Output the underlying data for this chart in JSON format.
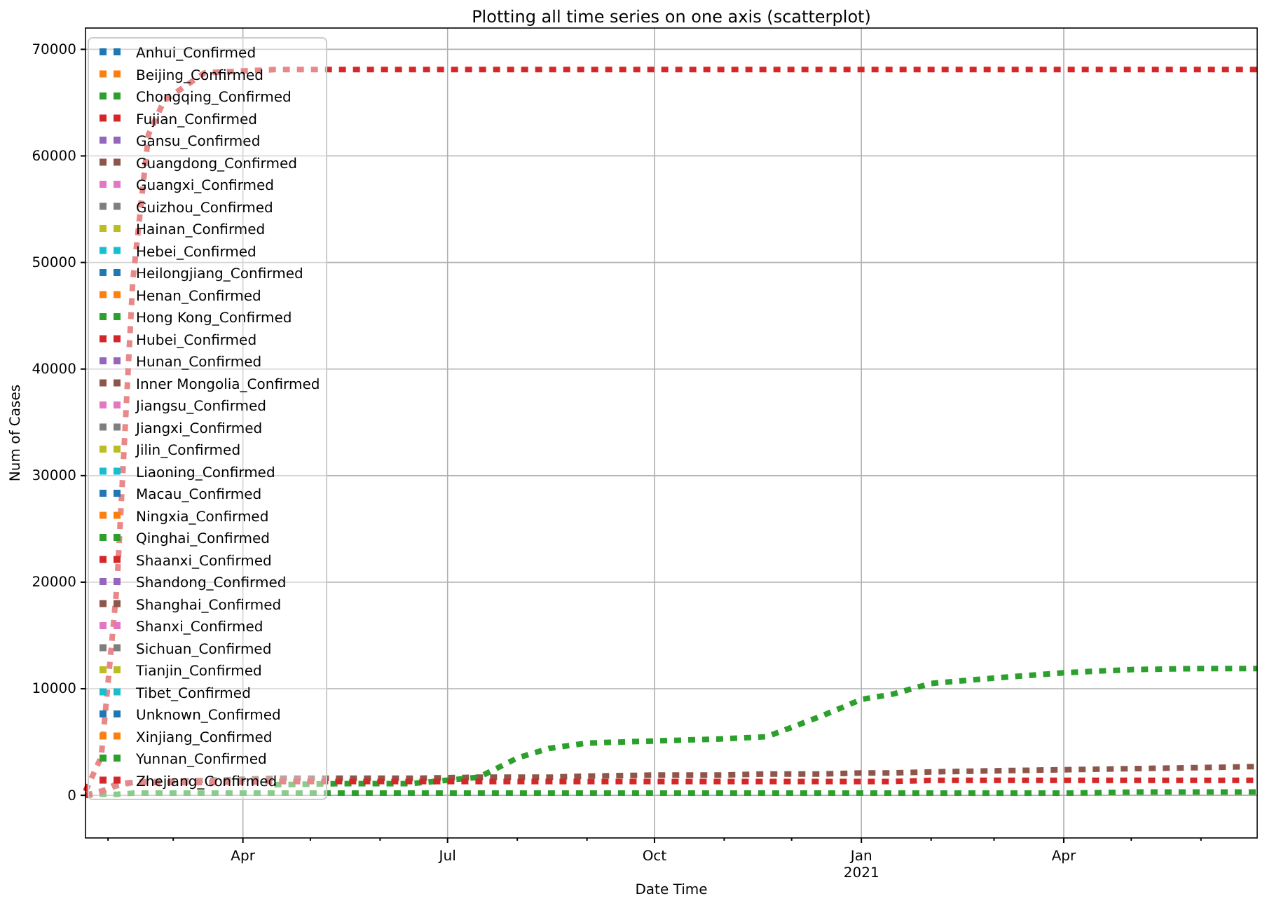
{
  "chart_data": {
    "type": "line",
    "title": "Plotting all time series on one axis (scatterplot)",
    "xlabel": "Date Time",
    "ylabel": "Num of Cases",
    "x": [
      "2020-01-22",
      "2020-01-29",
      "2020-02-05",
      "2020-02-12",
      "2020-02-19",
      "2020-02-26",
      "2020-03-15",
      "2020-04-15",
      "2020-05-15",
      "2020-06-15",
      "2020-07-15",
      "2020-08-01",
      "2020-08-15",
      "2020-09-01",
      "2020-10-01",
      "2020-11-01",
      "2020-11-20",
      "2020-12-15",
      "2021-01-01",
      "2021-01-15",
      "2021-02-01",
      "2021-03-01",
      "2021-04-01",
      "2021-05-01",
      "2021-06-01",
      "2021-06-26"
    ],
    "xlim": [
      "2020-01-22",
      "2021-06-26"
    ],
    "xticks": [
      {
        "value": "2020-02-01",
        "label": null
      },
      {
        "value": "2020-03-01",
        "label": null
      },
      {
        "value": "2020-04-01",
        "label": "Apr"
      },
      {
        "value": "2020-05-01",
        "label": null
      },
      {
        "value": "2020-06-01",
        "label": null
      },
      {
        "value": "2020-07-01",
        "label": "Jul"
      },
      {
        "value": "2020-08-01",
        "label": null
      },
      {
        "value": "2020-09-01",
        "label": null
      },
      {
        "value": "2020-10-01",
        "label": "Oct"
      },
      {
        "value": "2020-11-01",
        "label": null
      },
      {
        "value": "2020-12-01",
        "label": null
      },
      {
        "value": "2021-01-01",
        "label": "Jan\n2021"
      },
      {
        "value": "2021-02-01",
        "label": null
      },
      {
        "value": "2021-03-01",
        "label": null
      },
      {
        "value": "2021-04-01",
        "label": "Apr"
      },
      {
        "value": "2021-05-01",
        "label": null
      },
      {
        "value": "2021-06-01",
        "label": null
      }
    ],
    "ylim": [
      -4000,
      72000
    ],
    "yticks": [
      0,
      10000,
      20000,
      30000,
      40000,
      50000,
      60000,
      70000
    ],
    "grid": true,
    "legend": "top left",
    "line_style": "dotted",
    "series": [
      {
        "name": "Anhui_Confirmed",
        "color": "#1f77b4",
        "values": [
          null,
          null,
          null,
          null,
          null,
          null,
          null,
          null,
          null,
          null,
          null,
          null,
          null,
          null,
          null,
          null,
          null,
          null,
          null,
          null,
          null,
          null,
          null,
          null,
          null,
          null
        ]
      },
      {
        "name": "Beijing_Confirmed",
        "color": "#ff7f0e",
        "values": [
          null,
          null,
          null,
          null,
          null,
          null,
          null,
          null,
          null,
          null,
          null,
          null,
          null,
          null,
          null,
          null,
          null,
          null,
          null,
          null,
          null,
          null,
          null,
          null,
          null,
          null
        ]
      },
      {
        "name": "Chongqing_Confirmed",
        "color": "#2ca02c",
        "values": [
          null,
          null,
          null,
          null,
          null,
          null,
          null,
          null,
          null,
          null,
          null,
          null,
          null,
          null,
          null,
          null,
          null,
          null,
          null,
          null,
          null,
          null,
          null,
          null,
          null,
          null
        ]
      },
      {
        "name": "Fujian_Confirmed",
        "color": "#d62728",
        "values": [
          null,
          null,
          null,
          null,
          null,
          null,
          null,
          null,
          null,
          null,
          null,
          null,
          null,
          null,
          null,
          null,
          null,
          null,
          null,
          null,
          null,
          null,
          null,
          null,
          null,
          null
        ]
      },
      {
        "name": "Gansu_Confirmed",
        "color": "#9467bd",
        "values": [
          null,
          null,
          null,
          null,
          null,
          null,
          null,
          null,
          null,
          null,
          null,
          null,
          null,
          null,
          null,
          null,
          null,
          null,
          null,
          null,
          null,
          null,
          null,
          null,
          null,
          null
        ]
      },
      {
        "name": "Guangdong_Confirmed",
        "color": "#8c564b",
        "values": [
          0,
          400,
          900,
          1200,
          1300,
          1300,
          1400,
          1600,
          1600,
          1600,
          1700,
          1700,
          1700,
          1800,
          1900,
          1900,
          2000,
          2000,
          2100,
          2100,
          2200,
          2300,
          2400,
          2500,
          2600,
          2700
        ]
      },
      {
        "name": "Guangxi_Confirmed",
        "color": "#e377c2",
        "values": [
          null,
          null,
          null,
          null,
          null,
          null,
          null,
          null,
          null,
          null,
          null,
          null,
          null,
          null,
          null,
          null,
          null,
          null,
          null,
          null,
          null,
          null,
          null,
          null,
          null,
          null
        ]
      },
      {
        "name": "Guizhou_Confirmed",
        "color": "#7f7f7f",
        "values": [
          null,
          null,
          null,
          null,
          null,
          null,
          null,
          null,
          null,
          null,
          null,
          null,
          null,
          null,
          null,
          null,
          null,
          null,
          null,
          null,
          null,
          null,
          null,
          null,
          null,
          null
        ]
      },
      {
        "name": "Hainan_Confirmed",
        "color": "#bcbd22",
        "values": [
          null,
          null,
          null,
          null,
          null,
          null,
          null,
          null,
          null,
          null,
          null,
          null,
          null,
          null,
          null,
          null,
          null,
          null,
          null,
          null,
          null,
          null,
          null,
          null,
          null,
          null
        ]
      },
      {
        "name": "Hebei_Confirmed",
        "color": "#17becf",
        "values": [
          null,
          null,
          null,
          null,
          null,
          null,
          null,
          null,
          null,
          null,
          null,
          null,
          null,
          null,
          null,
          null,
          null,
          null,
          null,
          null,
          null,
          null,
          null,
          null,
          null,
          null
        ]
      },
      {
        "name": "Heilongjiang_Confirmed",
        "color": "#1f77b4",
        "values": [
          null,
          null,
          null,
          null,
          null,
          null,
          null,
          null,
          null,
          null,
          null,
          null,
          null,
          null,
          null,
          null,
          null,
          null,
          null,
          null,
          null,
          null,
          null,
          null,
          null,
          null
        ]
      },
      {
        "name": "Henan_Confirmed",
        "color": "#ff7f0e",
        "values": [
          null,
          null,
          null,
          null,
          null,
          null,
          null,
          null,
          null,
          null,
          null,
          null,
          null,
          null,
          null,
          null,
          null,
          null,
          null,
          null,
          null,
          null,
          null,
          null,
          null,
          null
        ]
      },
      {
        "name": "Hong Kong_Confirmed",
        "color": "#2ca02c",
        "values": [
          null,
          null,
          null,
          null,
          null,
          null,
          null,
          1000,
          1100,
          1100,
          1700,
          3500,
          4400,
          4900,
          5100,
          5300,
          5500,
          7500,
          9000,
          9500,
          10500,
          11000,
          11500,
          11800,
          11900,
          11900
        ]
      },
      {
        "name": "Hubei_Confirmed",
        "color": "#d62728",
        "values": [
          400,
          3600,
          19700,
          48200,
          62000,
          65200,
          67800,
          68100,
          68100,
          68100,
          68100,
          68100,
          68100,
          68100,
          68100,
          68100,
          68100,
          68100,
          68100,
          68100,
          68100,
          68100,
          68100,
          68100,
          68100,
          68100
        ]
      },
      {
        "name": "Hunan_Confirmed",
        "color": "#9467bd",
        "values": [
          null,
          null,
          null,
          null,
          null,
          null,
          null,
          null,
          null,
          null,
          null,
          null,
          null,
          null,
          null,
          null,
          null,
          null,
          null,
          null,
          null,
          null,
          null,
          null,
          null,
          null
        ]
      },
      {
        "name": "Inner Mongolia_Confirmed",
        "color": "#8c564b",
        "values": [
          null,
          null,
          null,
          null,
          null,
          null,
          null,
          null,
          null,
          null,
          null,
          null,
          null,
          null,
          null,
          null,
          null,
          null,
          null,
          null,
          null,
          null,
          null,
          null,
          null,
          null
        ]
      },
      {
        "name": "Jiangsu_Confirmed",
        "color": "#e377c2",
        "values": [
          null,
          null,
          null,
          null,
          null,
          null,
          null,
          null,
          null,
          null,
          null,
          null,
          null,
          null,
          null,
          null,
          null,
          null,
          null,
          null,
          null,
          null,
          null,
          null,
          null,
          null
        ]
      },
      {
        "name": "Jiangxi_Confirmed",
        "color": "#7f7f7f",
        "values": [
          null,
          null,
          null,
          null,
          null,
          null,
          null,
          null,
          null,
          null,
          null,
          null,
          null,
          null,
          null,
          null,
          null,
          null,
          null,
          null,
          null,
          null,
          null,
          null,
          null,
          null
        ]
      },
      {
        "name": "Jilin_Confirmed",
        "color": "#bcbd22",
        "values": [
          null,
          null,
          null,
          null,
          null,
          null,
          null,
          null,
          null,
          null,
          null,
          null,
          null,
          null,
          null,
          null,
          null,
          null,
          null,
          null,
          null,
          null,
          null,
          null,
          null,
          null
        ]
      },
      {
        "name": "Liaoning_Confirmed",
        "color": "#17becf",
        "values": [
          null,
          null,
          null,
          null,
          null,
          null,
          null,
          null,
          null,
          null,
          null,
          null,
          null,
          null,
          null,
          null,
          null,
          null,
          null,
          null,
          null,
          null,
          null,
          null,
          null,
          null
        ]
      },
      {
        "name": "Macau_Confirmed",
        "color": "#1f77b4",
        "values": [
          null,
          null,
          null,
          null,
          null,
          null,
          null,
          null,
          null,
          null,
          null,
          null,
          null,
          null,
          null,
          null,
          null,
          null,
          null,
          null,
          null,
          null,
          null,
          null,
          null,
          null
        ]
      },
      {
        "name": "Ningxia_Confirmed",
        "color": "#ff7f0e",
        "values": [
          null,
          null,
          null,
          null,
          null,
          null,
          null,
          null,
          null,
          null,
          null,
          null,
          null,
          null,
          null,
          null,
          null,
          null,
          null,
          null,
          null,
          null,
          null,
          null,
          null,
          null
        ]
      },
      {
        "name": "Qinghai_Confirmed",
        "color": "#2ca02c",
        "values": [
          null,
          null,
          null,
          null,
          null,
          null,
          null,
          null,
          null,
          null,
          null,
          null,
          null,
          null,
          null,
          null,
          null,
          null,
          null,
          null,
          null,
          null,
          null,
          null,
          null,
          null
        ]
      },
      {
        "name": "Shaanxi_Confirmed",
        "color": "#d62728",
        "values": [
          null,
          null,
          null,
          null,
          null,
          null,
          null,
          null,
          null,
          null,
          null,
          null,
          null,
          null,
          null,
          null,
          null,
          null,
          null,
          null,
          null,
          null,
          null,
          null,
          null,
          null
        ]
      },
      {
        "name": "Shandong_Confirmed",
        "color": "#9467bd",
        "values": [
          null,
          null,
          null,
          null,
          null,
          null,
          null,
          null,
          null,
          null,
          null,
          null,
          null,
          null,
          null,
          null,
          null,
          null,
          null,
          null,
          null,
          null,
          null,
          null,
          null,
          null
        ]
      },
      {
        "name": "Shanghai_Confirmed",
        "color": "#8c564b",
        "values": [
          null,
          null,
          null,
          null,
          null,
          null,
          null,
          null,
          null,
          null,
          null,
          null,
          null,
          null,
          null,
          null,
          null,
          null,
          null,
          null,
          null,
          null,
          null,
          null,
          null,
          null
        ]
      },
      {
        "name": "Shanxi_Confirmed",
        "color": "#e377c2",
        "values": [
          null,
          null,
          null,
          null,
          null,
          null,
          null,
          null,
          null,
          null,
          null,
          null,
          null,
          null,
          null,
          null,
          null,
          null,
          null,
          null,
          null,
          null,
          null,
          null,
          null,
          null
        ]
      },
      {
        "name": "Sichuan_Confirmed",
        "color": "#7f7f7f",
        "values": [
          null,
          null,
          null,
          null,
          null,
          null,
          null,
          null,
          null,
          null,
          null,
          null,
          null,
          null,
          null,
          null,
          null,
          null,
          null,
          null,
          null,
          null,
          null,
          null,
          null,
          null
        ]
      },
      {
        "name": "Tianjin_Confirmed",
        "color": "#bcbd22",
        "values": [
          null,
          null,
          null,
          null,
          null,
          null,
          null,
          null,
          null,
          null,
          null,
          null,
          null,
          null,
          null,
          null,
          null,
          null,
          null,
          null,
          null,
          null,
          null,
          null,
          null,
          null
        ]
      },
      {
        "name": "Tibet_Confirmed",
        "color": "#17becf",
        "values": [
          null,
          null,
          null,
          null,
          null,
          null,
          null,
          null,
          null,
          null,
          null,
          null,
          null,
          null,
          null,
          null,
          null,
          null,
          null,
          null,
          null,
          null,
          null,
          null,
          null,
          null
        ]
      },
      {
        "name": "Unknown_Confirmed",
        "color": "#1f77b4",
        "values": [
          null,
          null,
          null,
          null,
          null,
          null,
          null,
          null,
          null,
          null,
          null,
          null,
          null,
          null,
          null,
          null,
          null,
          null,
          null,
          null,
          null,
          null,
          null,
          null,
          null,
          null
        ]
      },
      {
        "name": "Xinjiang_Confirmed",
        "color": "#ff7f0e",
        "values": [
          null,
          null,
          null,
          null,
          null,
          null,
          null,
          null,
          null,
          null,
          null,
          null,
          null,
          null,
          null,
          null,
          null,
          null,
          null,
          null,
          null,
          null,
          null,
          null,
          null,
          null
        ]
      },
      {
        "name": "Yunnan_Confirmed",
        "color": "#2ca02c",
        "values": [
          0,
          100,
          100,
          200,
          200,
          200,
          200,
          200,
          200,
          200,
          200,
          200,
          200,
          200,
          200,
          200,
          200,
          200,
          200,
          200,
          200,
          200,
          200,
          300,
          300,
          300
        ]
      },
      {
        "name": "Zhejiang_Confirmed",
        "color": "#d62728",
        "values": [
          0,
          300,
          1100,
          1200,
          1200,
          1200,
          1200,
          1300,
          1300,
          1300,
          1300,
          1300,
          1300,
          1300,
          1300,
          1300,
          1300,
          1300,
          1300,
          1300,
          1400,
          1400,
          1400,
          1400,
          1400,
          1400
        ]
      }
    ]
  }
}
